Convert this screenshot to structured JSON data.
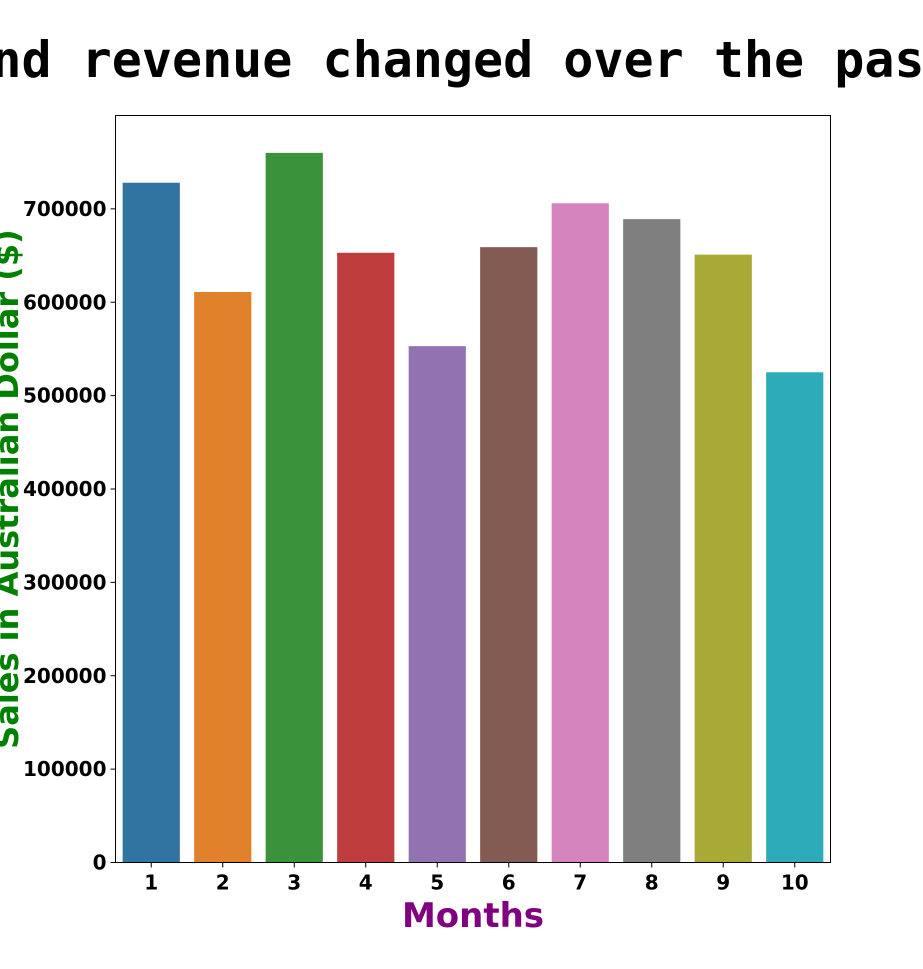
{
  "chart_data": {
    "type": "bar",
    "title": "Sales and revenue changed over the past months",
    "xlabel": "Months",
    "ylabel": "Sales in Australian Dollar ($)",
    "categories": [
      "1",
      "2",
      "3",
      "4",
      "5",
      "6",
      "7",
      "8",
      "9",
      "10"
    ],
    "values": [
      728000,
      611000,
      760000,
      653000,
      553000,
      659000,
      706000,
      689000,
      651000,
      525000
    ],
    "colors": [
      "#3274a1",
      "#e1812c",
      "#3a923a",
      "#c03d3e",
      "#9372b2",
      "#845b53",
      "#d684bd",
      "#7f7f7f",
      "#a9aa35",
      "#2eabb8"
    ],
    "ylim": [
      0,
      800000
    ],
    "yticks": [
      0,
      100000,
      200000,
      300000,
      400000,
      500000,
      600000,
      700000
    ],
    "ytick_labels": [
      "0",
      "100000",
      "200000",
      "300000",
      "400000",
      "500000",
      "600000",
      "700000"
    ],
    "xlabel_color": "#800080",
    "ylabel_color": "#008000",
    "grid": false,
    "legend": "none"
  }
}
